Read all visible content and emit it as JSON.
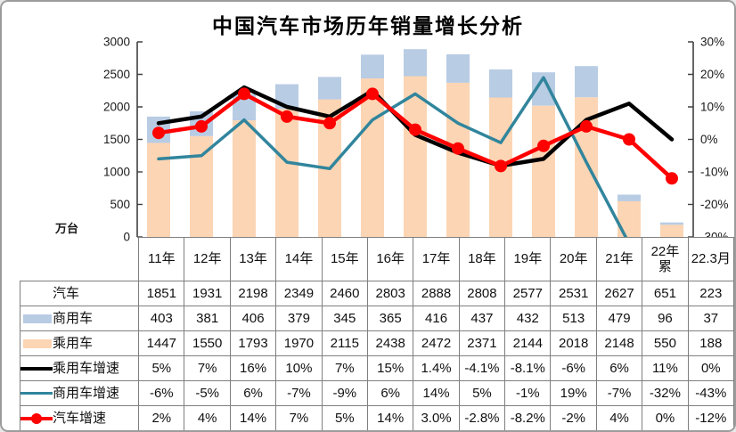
{
  "frame": {
    "title": "中国汽车市场历年销量增长分析",
    "unit_label": "万台"
  },
  "colors": {
    "bar_passenger": "#FCD5B4",
    "bar_commercial": "#B8CCE4",
    "line_passenger_growth": "#000000",
    "line_commercial_growth": "#31859C",
    "line_auto_growth": "#FF0000",
    "axis": "#404040",
    "table_border": "#7f7f7f"
  },
  "chart_data": {
    "type": "combo-stacked-bar-line",
    "title": "中国汽车市场历年销量增长分析",
    "categories": [
      "11年",
      "12年",
      "13年",
      "14年",
      "15年",
      "16年",
      "17年",
      "18年",
      "19年",
      "20年",
      "21年",
      "22年累",
      "22.3月"
    ],
    "left_axis": {
      "label": "万台",
      "min": 0,
      "max": 3000,
      "step": 500,
      "tick_labels": [
        "3000",
        "2500",
        "2000",
        "1500",
        "1000",
        "500",
        "0"
      ]
    },
    "right_axis": {
      "min": -30,
      "max": 30,
      "step": 10,
      "tick_labels": [
        "30%",
        "20%",
        "10%",
        "0%",
        "-10%",
        "-20%",
        "-30%"
      ]
    },
    "bar_series": [
      {
        "name": "乘用车",
        "stack_order": 0,
        "color": "#FCD5B4",
        "values": [
          1447,
          1550,
          1793,
          1970,
          2115,
          2438,
          2472,
          2371,
          2144,
          2018,
          2148,
          550,
          188
        ]
      },
      {
        "name": "商用车",
        "stack_order": 1,
        "color": "#B8CCE4",
        "values": [
          403,
          381,
          406,
          379,
          345,
          365,
          416,
          437,
          432,
          513,
          479,
          96,
          37
        ]
      }
    ],
    "total_series": {
      "name": "汽车",
      "values": [
        1851,
        1931,
        2198,
        2349,
        2460,
        2803,
        2888,
        2808,
        2577,
        2531,
        2627,
        651,
        223
      ]
    },
    "line_series": [
      {
        "name": "乘用车增速",
        "color": "#000000",
        "axis": "right",
        "marker": false,
        "width": 4.5,
        "values_pct": [
          5,
          7,
          16,
          10,
          7,
          15,
          1.4,
          -4.1,
          -8.1,
          -6,
          6,
          11,
          0
        ]
      },
      {
        "name": "商用车增速",
        "color": "#31859C",
        "axis": "right",
        "marker": false,
        "width": 3.5,
        "values_pct": [
          -6,
          -5,
          6,
          -7,
          -9,
          6,
          14,
          5,
          -1,
          19,
          -7,
          -32,
          -43
        ]
      },
      {
        "name": "汽车增速",
        "color": "#FF0000",
        "axis": "right",
        "marker": true,
        "width": 4.5,
        "values_pct": [
          2,
          4,
          14,
          7,
          5,
          14,
          3.0,
          -2.8,
          -8.2,
          -2,
          4,
          0,
          -12
        ]
      }
    ],
    "legend_position": "table-left",
    "grid": false
  },
  "table": {
    "header": [
      "11年",
      "12年",
      "13年",
      "14年",
      "15年",
      "16年",
      "17年",
      "18年",
      "19年",
      "20年",
      "21年",
      "22年累",
      "22.3月"
    ],
    "rows": [
      {
        "label": "汽车",
        "swatch": "none",
        "values": [
          "1851",
          "1931",
          "2198",
          "2349",
          "2460",
          "2803",
          "2888",
          "2808",
          "2577",
          "2531",
          "2627",
          "651",
          "223"
        ]
      },
      {
        "label": "商用车",
        "swatch": "bar-blue",
        "values": [
          "403",
          "381",
          "406",
          "379",
          "345",
          "365",
          "416",
          "437",
          "432",
          "513",
          "479",
          "96",
          "37"
        ]
      },
      {
        "label": "乘用车",
        "swatch": "bar-orange",
        "values": [
          "1447",
          "1550",
          "1793",
          "1970",
          "2115",
          "2438",
          "2472",
          "2371",
          "2144",
          "2018",
          "2148",
          "550",
          "188"
        ]
      },
      {
        "label": "乘用车增速",
        "swatch": "line-black",
        "values": [
          "5%",
          "7%",
          "16%",
          "10%",
          "7%",
          "15%",
          "1.4%",
          "-4.1%",
          "-8.1%",
          "-6%",
          "6%",
          "11%",
          "0%"
        ]
      },
      {
        "label": "商用车增速",
        "swatch": "line-teal",
        "values": [
          "-6%",
          "-5%",
          "6%",
          "-7%",
          "-9%",
          "6%",
          "14%",
          "5%",
          "-1%",
          "19%",
          "-7%",
          "-32%",
          "-43%"
        ]
      },
      {
        "label": "汽车增速",
        "swatch": "line-marker-red",
        "values": [
          "2%",
          "4%",
          "14%",
          "7%",
          "5%",
          "14%",
          "3.0%",
          "-2.8%",
          "-8.2%",
          "-2%",
          "4%",
          "0%",
          "-12%"
        ]
      }
    ]
  }
}
